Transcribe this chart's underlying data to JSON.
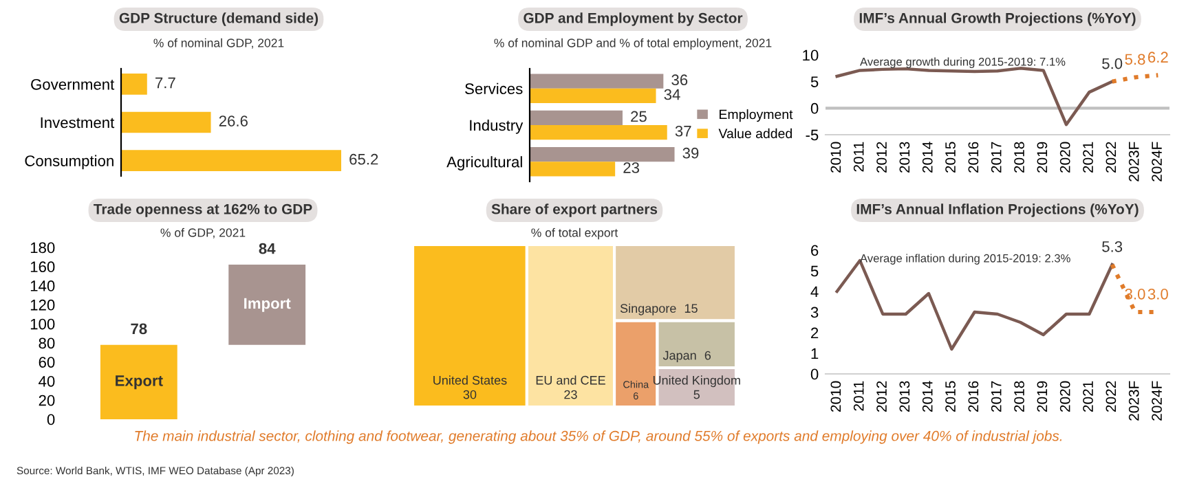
{
  "chart_data": [
    {
      "type": "bar",
      "orientation": "horizontal",
      "title": "GDP Structure (demand side)",
      "subtitle": "% of nominal GDP, 2021",
      "categories": [
        "Government",
        "Investment",
        "Consumption"
      ],
      "values": [
        7.7,
        26.6,
        65.2
      ],
      "color": "#fbbc1e",
      "data_labels": true,
      "tick_labels": "y",
      "annotations": [
        "The main industrial sector, clothing and footwear, generating about 35% of GDP, around 55% of exports and employing over 40% of industrial jobs.",
        "Source: World Bank, WTIS, IMF WEO Database (Apr 2023)"
      ]
    },
    {
      "type": "bar",
      "orientation": "horizontal",
      "title": "GDP and Employment by Sector",
      "subtitle": "% of nominal GDP and % of total employment, 2021",
      "categories": [
        "Services",
        "Industry",
        "Agricultural"
      ],
      "series": [
        {
          "name": "Employment",
          "color": "#a89490",
          "values": [
            36,
            25,
            39
          ]
        },
        {
          "name": "Value added",
          "color": "#fbbc1e",
          "values": [
            34,
            37,
            23
          ]
        }
      ],
      "data_labels": true,
      "tick_labels": "y",
      "legend": "right"
    },
    {
      "type": "line",
      "title": "IMF’s Annual Growth Projections (%YoY)",
      "categories": [
        "2010",
        "2011",
        "2012",
        "2013",
        "2014",
        "2015",
        "2016",
        "2017",
        "2018",
        "2019",
        "2020",
        "2021",
        "2022",
        "2023F",
        "2024F"
      ],
      "series": [
        {
          "color": "#7b5a52",
          "line_style": "solid",
          "values": [
            6.0,
            7.1,
            7.3,
            7.4,
            7.1,
            7.0,
            6.9,
            7.0,
            7.5,
            7.1,
            -3.1,
            3.0,
            5.0,
            null,
            null
          ],
          "value_labels": [
            null,
            null,
            null,
            null,
            null,
            null,
            null,
            null,
            null,
            null,
            null,
            null,
            "5.0",
            null,
            null
          ]
        },
        {
          "color": "#e07b2a",
          "line_style": "dotted",
          "values": [
            null,
            null,
            null,
            null,
            null,
            null,
            null,
            null,
            null,
            null,
            null,
            null,
            5.0,
            5.8,
            6.2
          ],
          "value_labels": [
            null,
            null,
            null,
            null,
            null,
            null,
            null,
            null,
            null,
            null,
            null,
            null,
            null,
            "5.8",
            "6.2"
          ]
        }
      ],
      "ylim": [
        -5,
        10
      ],
      "yticks": [
        -5,
        0,
        5,
        10
      ],
      "ref_lines": [
        {
          "axis": "y",
          "value": 0,
          "color": "#c0c0c0"
        }
      ],
      "annotations": [
        "Average growth during 2015-2019: 7.1%"
      ]
    },
    {
      "type": "bar",
      "title": "Trade openness at 162% to GDP",
      "subtitle": "% of GDP, 2021",
      "categories": [
        "Export",
        "Import"
      ],
      "values": [
        78,
        84
      ],
      "base": [
        0,
        78
      ],
      "colors": [
        "#fbbc1e",
        "#a89490"
      ],
      "data_labels": true,
      "ylim": [
        0,
        180
      ],
      "yticks": [
        0,
        20,
        40,
        60,
        80,
        100,
        120,
        140,
        160,
        180
      ],
      "tick_labels": "y"
    },
    {
      "type": "other",
      "title": "Share of export partners",
      "subtitle": "% of total export",
      "categories": [
        "United States",
        "EU and CEE",
        "Singapore",
        "China",
        "Japan",
        "United Kingdom"
      ],
      "data_labels": true,
      "values": [
        30,
        23,
        15,
        6,
        6,
        5
      ],
      "colors": [
        "#fbbc1e",
        "#fde3a2",
        "#e2cba6",
        "#eba06a",
        "#c7c1a6",
        "#d2c0bf"
      ]
    },
    {
      "type": "line",
      "title": "IMF’s Annual Inflation Projections (%YoY)",
      "categories": [
        "2010",
        "2011",
        "2012",
        "2013",
        "2014",
        "2015",
        "2016",
        "2017",
        "2018",
        "2019",
        "2020",
        "2021",
        "2022",
        "2023F",
        "2024F"
      ],
      "series": [
        {
          "color": "#7b5a52",
          "line_style": "solid",
          "values": [
            4.0,
            5.5,
            2.9,
            2.9,
            3.9,
            1.2,
            3.0,
            2.9,
            2.5,
            1.9,
            2.9,
            2.9,
            5.3,
            null,
            null
          ],
          "value_labels": [
            null,
            null,
            null,
            null,
            null,
            null,
            null,
            null,
            null,
            null,
            null,
            null,
            "5.3",
            null,
            null
          ]
        },
        {
          "color": "#e07b2a",
          "line_style": "dotted",
          "values": [
            null,
            null,
            null,
            null,
            null,
            null,
            null,
            null,
            null,
            null,
            null,
            null,
            5.3,
            3.0,
            3.0
          ],
          "value_labels": [
            null,
            null,
            null,
            null,
            null,
            null,
            null,
            null,
            null,
            null,
            null,
            null,
            null,
            "3.0",
            "3.0"
          ]
        }
      ],
      "ylim": [
        0,
        6
      ],
      "yticks": [
        0,
        1,
        2,
        3,
        4,
        5,
        6
      ],
      "annotations": [
        "Average inflation during 2015-2019: 2.3%"
      ]
    }
  ]
}
